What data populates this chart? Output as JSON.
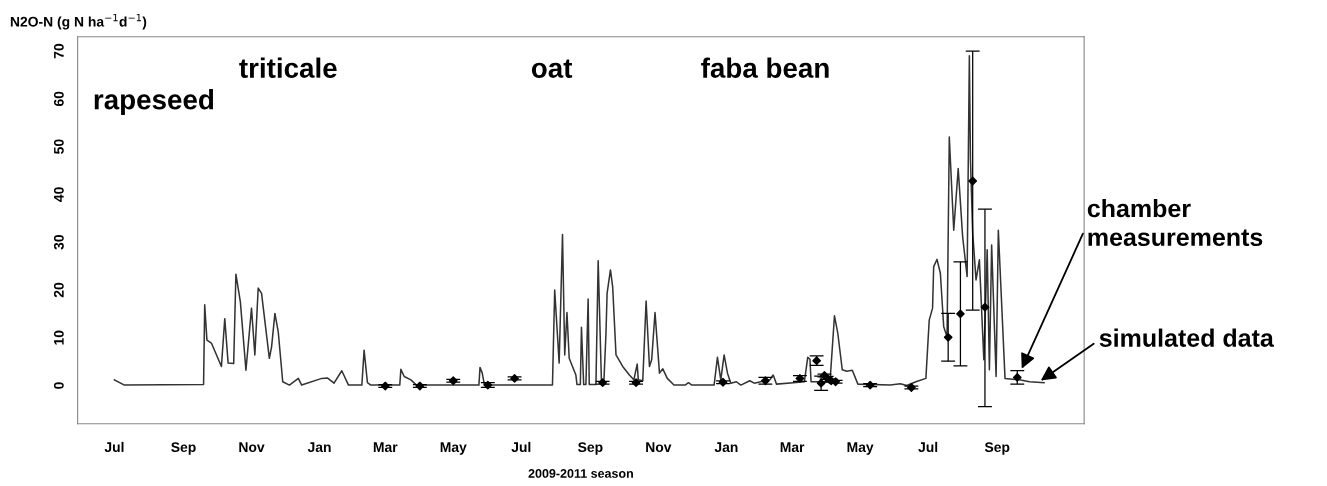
{
  "chart_data": {
    "type": "line",
    "ylabel": "N2O-N (g N ha$^{−1}$d$^{−1}$)",
    "xlabel": "2009-2011 season",
    "xlim": [
      "2009-05-29",
      "2011-11-18"
    ],
    "ylim": [
      -8,
      73
    ],
    "yticks": [
      0,
      10,
      20,
      30,
      40,
      50,
      60,
      70
    ],
    "xticks": [
      {
        "value": "2009-07-01",
        "label": "Jul"
      },
      {
        "value": "2009-09-01",
        "label": "Sep"
      },
      {
        "value": "2009-11-01",
        "label": "Nov"
      },
      {
        "value": "2010-01-01",
        "label": "Jan"
      },
      {
        "value": "2010-03-01",
        "label": "Mar"
      },
      {
        "value": "2010-05-01",
        "label": "May"
      },
      {
        "value": "2010-07-01",
        "label": "Jul"
      },
      {
        "value": "2010-09-01",
        "label": "Sep"
      },
      {
        "value": "2010-11-01",
        "label": "Nov"
      },
      {
        "value": "2011-01-01",
        "label": "Jan"
      },
      {
        "value": "2011-03-01",
        "label": "Mar"
      },
      {
        "value": "2011-05-01",
        "label": "May"
      },
      {
        "value": "2011-07-01",
        "label": "Jul"
      },
      {
        "value": "2011-09-01",
        "label": "Sep"
      }
    ],
    "grid": false,
    "legend": false,
    "series": [
      {
        "type": "line",
        "color": "#333333",
        "marker": "none",
        "line_style": "solid",
        "x": [
          "2009-07-01",
          "2009-07-10",
          "2009-09-19",
          "2009-09-20",
          "2009-09-22",
          "2009-09-26",
          "2009-10-05",
          "2009-10-08",
          "2009-10-11",
          "2009-10-16",
          "2009-10-18",
          "2009-10-22",
          "2009-10-27",
          "2009-11-01",
          "2009-11-04",
          "2009-11-07",
          "2009-11-10",
          "2009-11-17",
          "2009-11-19",
          "2009-11-22",
          "2009-11-25",
          "2009-11-29",
          "2009-12-05",
          "2009-12-13",
          "2009-12-16",
          "2010-01-03",
          "2010-01-08",
          "2010-01-14",
          "2010-01-21",
          "2010-01-27",
          "2010-02-08",
          "2010-02-10",
          "2010-02-13",
          "2010-02-16",
          "2010-03-14",
          "2010-03-15",
          "2010-03-18",
          "2010-03-24",
          "2010-03-29",
          "2010-05-24",
          "2010-05-25",
          "2010-05-27",
          "2010-05-29",
          "2010-07-29",
          "2010-07-31",
          "2010-08-04",
          "2010-08-07",
          "2010-08-09",
          "2010-08-11",
          "2010-08-13",
          "2010-08-19",
          "2010-08-20",
          "2010-08-23",
          "2010-08-24",
          "2010-08-26",
          "2010-08-28",
          "2010-08-30",
          "2010-08-31",
          "2010-09-06",
          "2010-09-08",
          "2010-09-11",
          "2010-09-13",
          "2010-09-15",
          "2010-09-16",
          "2010-09-19",
          "2010-09-21",
          "2010-09-24",
          "2010-09-30",
          "2010-10-06",
          "2010-10-10",
          "2010-10-13",
          "2010-10-14",
          "2010-10-18",
          "2010-10-21",
          "2010-10-24",
          "2010-10-26",
          "2010-10-29",
          "2010-11-02",
          "2010-11-05",
          "2010-11-09",
          "2010-11-15",
          "2010-11-25",
          "2010-11-28",
          "2010-12-01",
          "2010-12-21",
          "2010-12-24",
          "2010-12-27",
          "2010-12-30",
          "2011-01-02",
          "2011-01-05",
          "2011-01-10",
          "2011-01-14",
          "2011-01-22",
          "2011-01-26",
          "2011-02-09",
          "2011-02-12",
          "2011-02-15",
          "2011-03-02",
          "2011-03-12",
          "2011-03-15",
          "2011-03-17",
          "2011-03-18",
          "2011-04-04",
          "2011-04-08",
          "2011-04-11",
          "2011-04-15",
          "2011-04-19",
          "2011-04-24",
          "2011-04-29",
          "2011-05-28",
          "2011-06-06",
          "2011-06-12",
          "2011-06-20",
          "2011-06-29",
          "2011-07-02",
          "2011-07-05",
          "2011-07-06",
          "2011-07-09",
          "2011-07-12",
          "2011-07-15",
          "2011-07-18",
          "2011-07-20",
          "2011-07-24",
          "2011-07-28",
          "2011-08-01",
          "2011-08-05",
          "2011-08-07",
          "2011-08-08",
          "2011-08-10",
          "2011-08-13",
          "2011-08-16",
          "2011-08-20",
          "2011-08-23",
          "2011-08-25",
          "2011-08-27",
          "2011-08-31",
          "2011-09-02",
          "2011-09-08",
          "2011-09-21",
          "2011-09-30",
          "2011-10-13"
        ],
        "values": [
          1.2,
          0.1,
          0.2,
          16.9,
          9.5,
          8.9,
          4.0,
          14,
          4.7,
          4.6,
          23.3,
          17.5,
          3.2,
          16.2,
          6.4,
          20.4,
          19.3,
          5.7,
          8.1,
          15.1,
          11.2,
          0.8,
          0.1,
          1.5,
          0.1,
          1.5,
          1.6,
          0.5,
          3.1,
          0.1,
          0.1,
          7.4,
          0.6,
          0.1,
          0.1,
          3.4,
          1.9,
          1.2,
          0.1,
          0.1,
          3.8,
          2.6,
          0.1,
          0.1,
          20.0,
          4.7,
          31.6,
          6.4,
          15.3,
          5.7,
          2.2,
          0.2,
          0.2,
          12.2,
          0.2,
          0.2,
          18.1,
          0.2,
          0.2,
          26.1,
          0.2,
          0.2,
          10.9,
          19.3,
          24.2,
          20.7,
          6.4,
          4.0,
          2.2,
          1.2,
          4.5,
          1.2,
          1.0,
          17.7,
          4.0,
          5.4,
          15.3,
          2.6,
          3.5,
          1.5,
          0.1,
          0.1,
          0.6,
          0.1,
          0.1,
          5.9,
          1.2,
          6.4,
          2.6,
          0.5,
          0.8,
          0.1,
          1.0,
          0.5,
          1.2,
          2.2,
          0.3,
          0.6,
          0.8,
          5.9,
          5.5,
          0.8,
          0.8,
          14.6,
          10.9,
          3.3,
          3.0,
          3.2,
          0.3,
          0.1,
          0.4,
          0.0,
          0.8,
          1.5,
          13.7,
          16.2,
          24.9,
          26.4,
          23.5,
          12.3,
          10.2,
          52.0,
          32.5,
          45.4,
          31.1,
          22.8,
          69.0,
          47.2,
          31.9,
          22.1,
          26.3,
          5.4,
          28.4,
          3.3,
          29.4,
          1.9,
          32.5,
          1.5,
          1.2,
          0.8,
          0.6
        ]
      },
      {
        "type": "scatter",
        "color": "#000000",
        "marker": "diamond",
        "x": [
          "2010-03-01",
          "2010-04-01",
          "2010-05-01",
          "2010-06-01",
          "2010-06-25",
          "2010-09-12",
          "2010-10-12",
          "2010-12-29",
          "2011-02-05",
          "2011-03-08",
          "2011-03-23",
          "2011-03-27",
          "2011-03-30",
          "2011-04-01",
          "2011-04-05",
          "2011-04-09",
          "2011-05-10",
          "2011-06-16",
          "2011-07-19",
          "2011-07-30",
          "2011-08-10",
          "2011-08-21",
          "2011-09-19"
        ],
        "values": [
          -0.1,
          -0.1,
          1.0,
          0.1,
          1.5,
          0.6,
          0.6,
          0.7,
          1.0,
          1.5,
          5.2,
          0.5,
          2.1,
          1.6,
          1.0,
          0.8,
          0.1,
          -0.4,
          10.1,
          15.0,
          42.8,
          16.4,
          1.7
        ],
        "errors": [
          0.3,
          0.3,
          0.3,
          0.5,
          0.3,
          0.3,
          0.3,
          0.3,
          0.7,
          0.6,
          1.0,
          1.5,
          0.3,
          0.3,
          0.3,
          0.3,
          0.3,
          0.3,
          5.0,
          10.9,
          [
            15.8,
            70.0
          ],
          [
            -4.4,
            36.9
          ],
          1.4
        ]
      }
    ],
    "annotations": [
      "rapeseed",
      "triticale",
      "oat",
      "faba bean",
      {
        "text": "chamber measurements",
        "x": "2011-09-22",
        "y": 3
      },
      {
        "text": "simulated data",
        "x": "2011-10-08",
        "y": 0.7
      }
    ]
  }
}
